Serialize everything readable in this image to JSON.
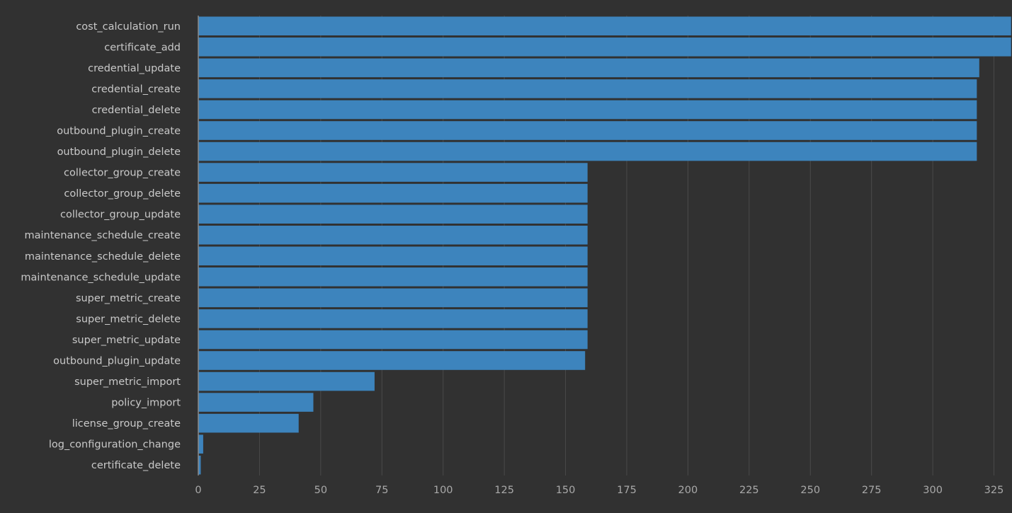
{
  "chart_data": {
    "type": "bar",
    "orientation": "horizontal",
    "title": "",
    "xlabel": "",
    "ylabel": "",
    "xlim": [
      0,
      332
    ],
    "x_ticks": [
      "0",
      "25",
      "50",
      "75",
      "100",
      "125",
      "150",
      "175",
      "200",
      "225",
      "250",
      "275",
      "300",
      "325"
    ],
    "grid": true,
    "bar_color": "#3d84bd",
    "background_color": "#313131",
    "categories": [
      "cost_calculation_run",
      "certificate_add",
      "credential_update",
      "credential_create",
      "credential_delete",
      "outbound_plugin_create",
      "outbound_plugin_delete",
      "collector_group_create",
      "collector_group_delete",
      "collector_group_update",
      "maintenance_schedule_create",
      "maintenance_schedule_delete",
      "maintenance_schedule_update",
      "super_metric_create",
      "super_metric_delete",
      "super_metric_update",
      "outbound_plugin_update",
      "super_metric_import",
      "policy_import",
      "license_group_create",
      "log_configuration_change",
      "certificate_delete"
    ],
    "values": [
      332,
      332,
      319,
      318,
      318,
      318,
      318,
      159,
      159,
      159,
      159,
      159,
      159,
      159,
      159,
      159,
      158,
      72,
      47,
      41,
      2,
      1
    ]
  }
}
